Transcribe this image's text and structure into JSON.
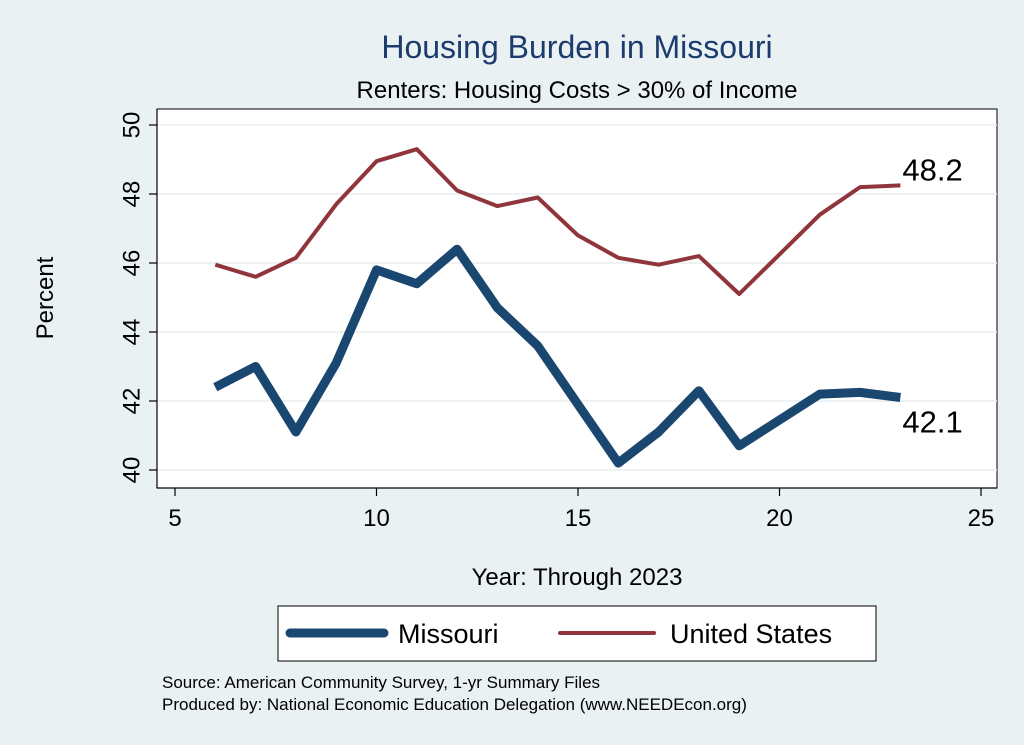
{
  "chart_data": {
    "type": "line",
    "title": "Housing Burden in Missouri",
    "subtitle": "Renters: Housing Costs > 30% of Income",
    "xlabel": "Year: Through 2023",
    "ylabel": "Percent",
    "xlim": [
      5,
      25
    ],
    "ylim": [
      40,
      50
    ],
    "xticks": [
      5,
      10,
      15,
      20,
      25
    ],
    "yticks": [
      40,
      42,
      44,
      46,
      48,
      50
    ],
    "grid": true,
    "legend_position": "bottom",
    "x": [
      6,
      7,
      8,
      9,
      10,
      11,
      12,
      13,
      14,
      15,
      16,
      17,
      18,
      19,
      20,
      21,
      22,
      23
    ],
    "series": [
      {
        "name": "Missouri",
        "color": "#1a476f",
        "values": [
          42.4,
          43.0,
          41.1,
          43.1,
          45.8,
          45.4,
          46.4,
          44.7,
          43.6,
          41.9,
          40.2,
          41.1,
          42.3,
          40.7,
          41.45,
          42.2,
          42.25,
          42.1
        ],
        "end_label": "42.1"
      },
      {
        "name": "United States",
        "color": "#90353b",
        "values": [
          45.95,
          45.6,
          46.15,
          47.7,
          48.95,
          49.3,
          48.1,
          47.65,
          47.9,
          46.8,
          46.15,
          45.95,
          46.2,
          45.1,
          46.25,
          47.4,
          48.2,
          48.25
        ],
        "end_label": "48.2"
      }
    ],
    "notes": [
      "Source: American Community Survey, 1-yr Summary Files",
      "Produced by: National Economic Education Delegation (www.NEEDEcon.org)"
    ]
  }
}
